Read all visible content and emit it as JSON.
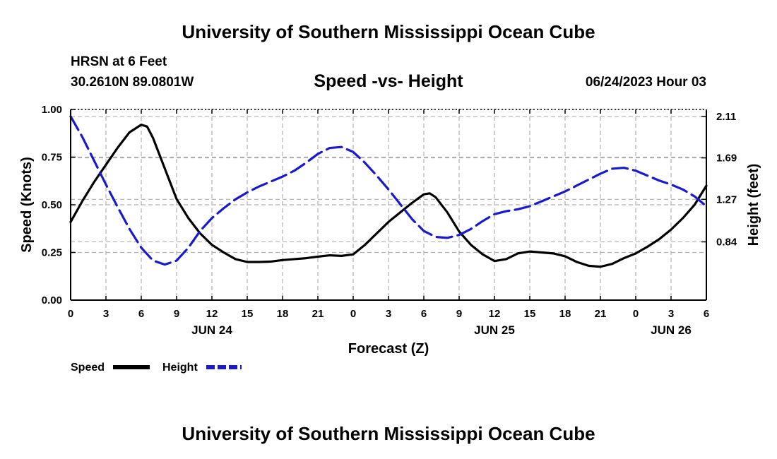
{
  "header": {
    "title": "University of Southern Mississippi Ocean Cube",
    "station": "HRSN at 6 Feet",
    "coordinates": "30.2610N  89.0801W",
    "subtitle": "Speed -vs- Height",
    "datetime": "06/24/2023 Hour 03"
  },
  "footer": {
    "title": "University of Southern Mississippi Ocean Cube"
  },
  "legend": {
    "speed_label": "Speed",
    "height_label": "Height"
  },
  "colors": {
    "speed": "#000000",
    "height": "#1a1acc",
    "grid": "#b0b0b0"
  },
  "chart_data": {
    "type": "line",
    "title": "Speed -vs- Height",
    "xlabel": "Forecast (Z)",
    "ylabel": "Speed (Knots)",
    "ylabel_right": "Height (feet)",
    "xlim": [
      0,
      54
    ],
    "ylim": [
      0,
      1.0
    ],
    "ylim_right": [
      0.25,
      2.18
    ],
    "grid": true,
    "legend_position": "bottom-left",
    "x_ticks": [
      0,
      3,
      6,
      9,
      12,
      15,
      18,
      21,
      24,
      27,
      30,
      33,
      36,
      39,
      42,
      45,
      48,
      51,
      54
    ],
    "x_tick_labels": [
      "0",
      "3",
      "6",
      "9",
      "12",
      "15",
      "18",
      "21",
      "0",
      "3",
      "6",
      "9",
      "12",
      "15",
      "18",
      "21",
      "0",
      "3",
      "6"
    ],
    "date_labels": [
      {
        "x": 12,
        "label": "JUN 24"
      },
      {
        "x": 36,
        "label": "JUN 25"
      },
      {
        "x": 51,
        "label": "JUN 26"
      }
    ],
    "y_ticks": [
      0.0,
      0.25,
      0.5,
      0.75,
      1.0
    ],
    "y_tick_labels": [
      "0.00",
      "0.25",
      "0.50",
      "0.75",
      "1.00"
    ],
    "y_ticks_right": [
      0.84,
      1.27,
      1.69,
      2.11
    ],
    "y_tick_labels_right": [
      "0.84",
      "1.27",
      "1.69",
      "2.11"
    ],
    "series": [
      {
        "name": "Speed",
        "axis": "left",
        "style": "solid",
        "x": [
          0,
          1,
          2,
          3,
          4,
          5,
          6,
          6.5,
          7,
          8,
          9,
          10,
          11,
          12,
          13,
          14,
          15,
          16,
          17,
          18,
          19,
          20,
          21,
          22,
          23,
          24,
          25,
          26,
          27,
          28,
          29,
          30,
          30.5,
          31,
          32,
          33,
          34,
          35,
          36,
          37,
          38,
          39,
          40,
          41,
          42,
          43,
          44,
          45,
          46,
          47,
          48,
          49,
          50,
          51,
          52,
          53,
          54
        ],
        "values": [
          0.41,
          0.52,
          0.62,
          0.71,
          0.8,
          0.88,
          0.92,
          0.91,
          0.85,
          0.69,
          0.53,
          0.43,
          0.35,
          0.29,
          0.25,
          0.215,
          0.2,
          0.2,
          0.202,
          0.21,
          0.215,
          0.22,
          0.228,
          0.235,
          0.232,
          0.24,
          0.29,
          0.35,
          0.41,
          0.46,
          0.51,
          0.555,
          0.56,
          0.54,
          0.46,
          0.36,
          0.29,
          0.24,
          0.205,
          0.215,
          0.245,
          0.255,
          0.25,
          0.245,
          0.23,
          0.2,
          0.18,
          0.175,
          0.19,
          0.22,
          0.245,
          0.28,
          0.32,
          0.37,
          0.43,
          0.5,
          0.6
        ]
      },
      {
        "name": "Height",
        "axis": "right",
        "style": "dashed",
        "x": [
          0,
          1,
          2,
          3,
          4,
          5,
          6,
          7,
          8,
          9,
          10,
          11,
          12,
          13,
          14,
          15,
          16,
          17,
          18,
          19,
          20,
          21,
          22,
          23,
          24,
          25,
          26,
          27,
          28,
          29,
          30,
          31,
          32,
          33,
          34,
          35,
          36,
          37,
          38,
          39,
          40,
          41,
          42,
          43,
          44,
          45,
          46,
          47,
          48,
          49,
          50,
          51,
          52,
          53,
          54
        ],
        "values": [
          2.11,
          1.9,
          1.66,
          1.42,
          1.19,
          0.97,
          0.78,
          0.65,
          0.61,
          0.65,
          0.78,
          0.95,
          1.08,
          1.18,
          1.27,
          1.34,
          1.4,
          1.45,
          1.5,
          1.56,
          1.64,
          1.73,
          1.79,
          1.8,
          1.75,
          1.64,
          1.51,
          1.37,
          1.22,
          1.07,
          0.95,
          0.89,
          0.88,
          0.91,
          0.97,
          1.05,
          1.12,
          1.15,
          1.17,
          1.2,
          1.25,
          1.3,
          1.35,
          1.41,
          1.47,
          1.53,
          1.58,
          1.59,
          1.56,
          1.51,
          1.46,
          1.42,
          1.37,
          1.3,
          1.2
        ]
      }
    ]
  }
}
